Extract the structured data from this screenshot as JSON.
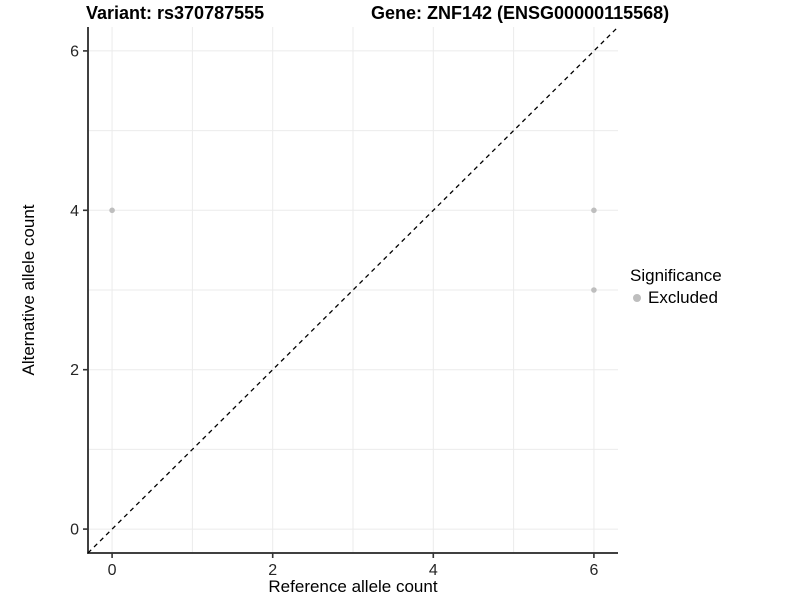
{
  "chart_data": {
    "type": "scatter",
    "title_left": "Variant: rs370787555",
    "title_right": "Gene: ZNF142 (ENSG00000115568)",
    "xlabel": "Reference allele count",
    "ylabel": "Alternative allele count",
    "xlim": [
      -0.3,
      6.3
    ],
    "ylim": [
      -0.3,
      6.3
    ],
    "x_ticks": [
      0,
      2,
      4,
      6
    ],
    "y_ticks": [
      0,
      2,
      4,
      6
    ],
    "grid": {
      "show": true,
      "step": 1,
      "color": "#ebebeb"
    },
    "identity_line": {
      "slope": 1,
      "intercept": 0,
      "style": "dashed",
      "color": "#000000"
    },
    "series": [
      {
        "name": "Excluded",
        "color": "#bebebe",
        "points": [
          [
            0,
            4
          ],
          [
            6,
            4
          ],
          [
            6,
            3
          ]
        ]
      }
    ],
    "legend": {
      "title": "Significance",
      "position": "right",
      "entries": [
        {
          "label": "Excluded",
          "color": "#bebebe"
        }
      ]
    },
    "styles": {
      "axis_color": "#404040",
      "tick_color": "#333333",
      "tick_text_color": "#262626",
      "background": "#ffffff"
    }
  }
}
